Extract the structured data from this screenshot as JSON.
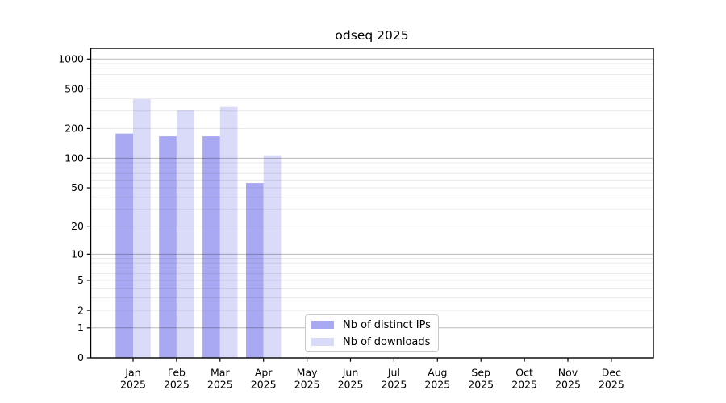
{
  "chart_data": {
    "type": "bar",
    "title": "odseq 2025",
    "categories": [
      "Jan",
      "Feb",
      "Mar",
      "Apr",
      "May",
      "Jun",
      "Jul",
      "Aug",
      "Sep",
      "Oct",
      "Nov",
      "Dec"
    ],
    "x_tick_second_line": "2025",
    "series": [
      {
        "name": "Nb of distinct IPs",
        "color": "#a9a9f3",
        "values": [
          178,
          167,
          167,
          56,
          0,
          0,
          0,
          0,
          0,
          0,
          0,
          0
        ]
      },
      {
        "name": "Nb of downloads",
        "color": "#dadaf9",
        "values": [
          395,
          305,
          330,
          107,
          0,
          0,
          0,
          0,
          0,
          0,
          0,
          0
        ]
      }
    ],
    "y_axis": {
      "scale": "log1p",
      "tick_values": [
        0,
        1,
        2,
        5,
        10,
        20,
        50,
        100,
        200,
        500,
        1000
      ],
      "major_gridline_values": [
        1,
        10,
        100,
        1000
      ],
      "minor_gridline_decades": [
        1,
        10,
        100
      ],
      "ylim": [
        0,
        1260
      ]
    },
    "legend": {
      "position": "inside-bottom-center"
    },
    "grid": true
  },
  "style_colors": {
    "spine": "#000000",
    "tick_label": "#000000",
    "major_grid_rgba": "rgba(0,0,0,0.27)",
    "minor_grid_rgba": "rgba(0,0,0,0.085)",
    "background": "#ffffff"
  }
}
